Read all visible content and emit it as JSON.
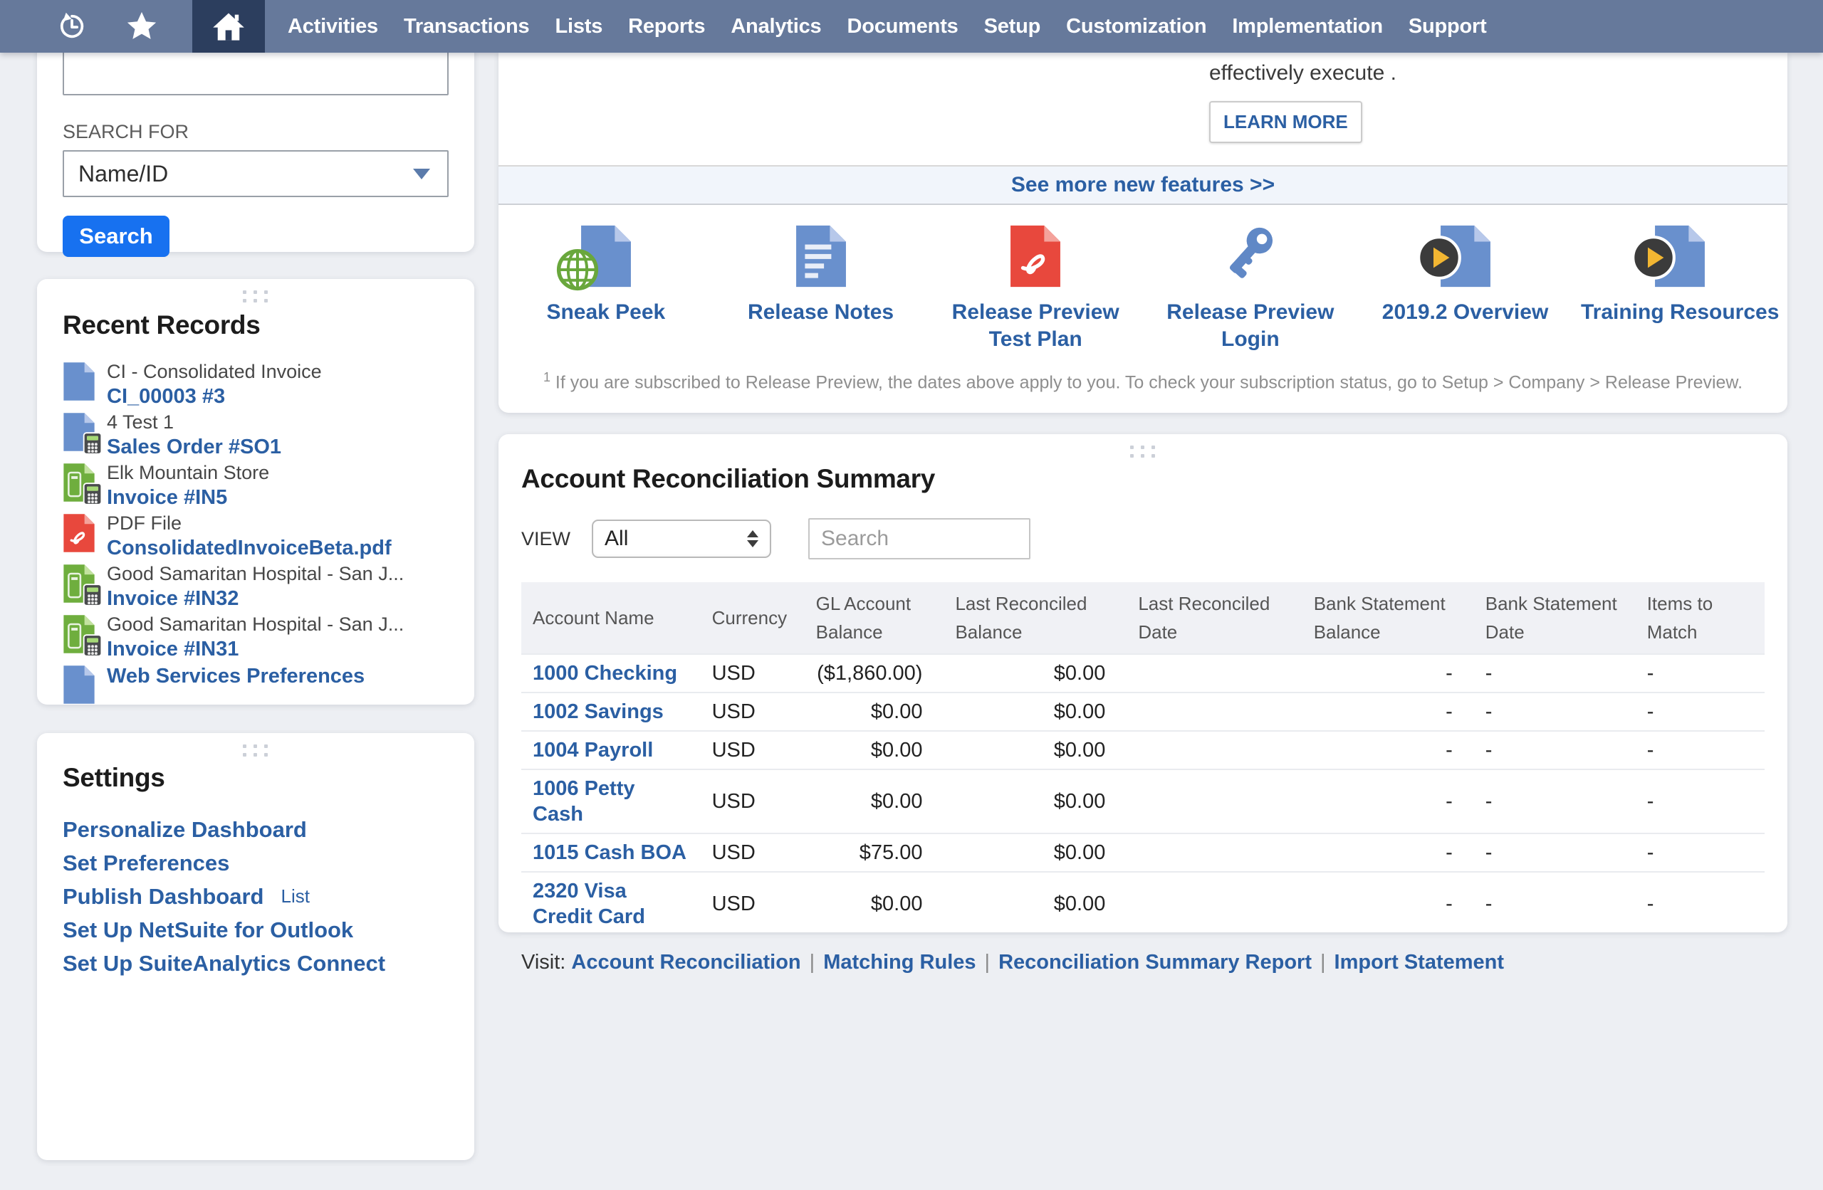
{
  "nav": {
    "menu": [
      "Activities",
      "Transactions",
      "Lists",
      "Reports",
      "Analytics",
      "Documents",
      "Setup",
      "Customization",
      "Implementation",
      "Support"
    ]
  },
  "sidebar": {
    "search": {
      "label": "SEARCH FOR",
      "keywords_value": "",
      "selected_type": "Name/ID",
      "button": "Search"
    },
    "recent_records": {
      "title": "Recent Records",
      "items": [
        {
          "icon": "file-blue-icon",
          "label": "CI - Consolidated Invoice",
          "link": "CI_00003 #3"
        },
        {
          "icon": "file-blue-calculator-icon",
          "label": "4 Test 1",
          "link": "Sales Order #SO1"
        },
        {
          "icon": "file-green-calculator-icon",
          "label": "Elk Mountain Store",
          "link": "Invoice #IN5"
        },
        {
          "icon": "file-pdf-icon",
          "label": "PDF File",
          "link": "ConsolidatedInvoiceBeta.pdf"
        },
        {
          "icon": "file-green-calculator-icon",
          "label": "Good Samaritan Hospital - San J...",
          "link": "Invoice #IN32"
        },
        {
          "icon": "file-green-calculator-icon",
          "label": "Good Samaritan Hospital - San J...",
          "link": "Invoice #IN31"
        },
        {
          "icon": "file-blue-icon",
          "label": "",
          "link": "Web Services Preferences"
        }
      ]
    },
    "settings": {
      "title": "Settings",
      "links": [
        {
          "label": "Personalize Dashboard",
          "suffix": ""
        },
        {
          "label": "Set Preferences",
          "suffix": ""
        },
        {
          "label": "Publish Dashboard",
          "suffix": "List"
        },
        {
          "label": "Set Up NetSuite for Outlook",
          "suffix": ""
        },
        {
          "label": "Set Up SuiteAnalytics Connect",
          "suffix": ""
        }
      ]
    }
  },
  "main": {
    "promo": {
      "text_line": "effectively execute .",
      "learn_more": "LEARN MORE"
    },
    "see_more": "See more new features >>",
    "features": [
      {
        "icon": "globe-document-icon",
        "label": "Sneak Peek"
      },
      {
        "icon": "notes-document-icon",
        "label": "Release Notes"
      },
      {
        "icon": "pdf-document-icon",
        "label": "Release Preview Test Plan"
      },
      {
        "icon": "key-icon",
        "label": "Release Preview Login"
      },
      {
        "icon": "video-document-icon",
        "label": "2019.2 Overview"
      },
      {
        "icon": "video-document-icon",
        "label": "Training Resources"
      }
    ],
    "footnote_sup": "1",
    "footnote": "If you are subscribed to Release Preview, the dates above apply to you. To check your subscription status, go to Setup > Company > Release Preview.",
    "reconciliation": {
      "title": "Account Reconciliation Summary",
      "view_label": "VIEW",
      "view_value": "All",
      "search_placeholder": "Search",
      "columns": [
        "Account Name",
        "Currency",
        "GL Account Balance",
        "Last Reconciled Balance",
        "Last Reconciled Date",
        "Bank Statement Balance",
        "Bank Statement Date",
        "Items to Match"
      ],
      "rows": [
        {
          "account": "1000 Checking",
          "currency": "USD",
          "gl_balance": "($1,860.00)",
          "last_reconciled_balance": "$0.00",
          "last_reconciled_date": "",
          "bank_statement_balance": "-",
          "bank_statement_date": "-",
          "items_to_match": "-"
        },
        {
          "account": "1002 Savings",
          "currency": "USD",
          "gl_balance": "$0.00",
          "last_reconciled_balance": "$0.00",
          "last_reconciled_date": "",
          "bank_statement_balance": "-",
          "bank_statement_date": "-",
          "items_to_match": "-"
        },
        {
          "account": "1004 Payroll",
          "currency": "USD",
          "gl_balance": "$0.00",
          "last_reconciled_balance": "$0.00",
          "last_reconciled_date": "",
          "bank_statement_balance": "-",
          "bank_statement_date": "-",
          "items_to_match": "-"
        },
        {
          "account": "1006 Petty Cash",
          "currency": "USD",
          "gl_balance": "$0.00",
          "last_reconciled_balance": "$0.00",
          "last_reconciled_date": "",
          "bank_statement_balance": "-",
          "bank_statement_date": "-",
          "items_to_match": "-"
        },
        {
          "account": "1015 Cash BOA",
          "currency": "USD",
          "gl_balance": "$75.00",
          "last_reconciled_balance": "$0.00",
          "last_reconciled_date": "",
          "bank_statement_balance": "-",
          "bank_statement_date": "-",
          "items_to_match": "-"
        },
        {
          "account": "2320 Visa Credit Card",
          "currency": "USD",
          "gl_balance": "$0.00",
          "last_reconciled_balance": "$0.00",
          "last_reconciled_date": "",
          "bank_statement_balance": "-",
          "bank_statement_date": "-",
          "items_to_match": "-"
        }
      ],
      "visit_label": "Visit:",
      "visit_links": [
        "Account Reconciliation",
        "Matching Rules",
        "Reconciliation Summary Report",
        "Import Statement"
      ]
    }
  },
  "colors": {
    "nav_bg": "#66799b",
    "nav_active_bg": "#2c3e5e",
    "link_blue": "#2b5fa3",
    "button_blue": "#1771f0",
    "page_bg": "#edeff3",
    "band_bg": "#f1f5fb",
    "table_header_bg": "#f0f1f5"
  }
}
